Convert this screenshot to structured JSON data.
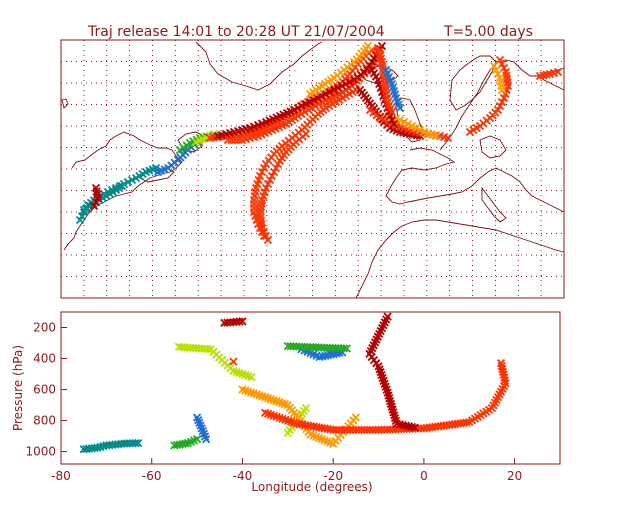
{
  "title": "Traj release 14:01 to 20:28 UT 21/07/2004",
  "duration": "T=5.00 days",
  "map": {
    "lon_range": [
      -80,
      30
    ],
    "lat_range": [
      20,
      80
    ],
    "grid_step": 5
  },
  "chart_data": {
    "type": "scatter",
    "title": "Traj release 14:01 to 20:28 UT 21/07/2004    T=5.00 days",
    "xlabel": "Longitude  (degrees)",
    "ylabel": "Pressure  (hPa)",
    "xlim": [
      -80,
      30
    ],
    "ylim": [
      1080,
      100
    ],
    "x_ticks": [
      -80,
      -60,
      -40,
      -20,
      0,
      20
    ],
    "y_ticks": [
      200,
      400,
      600,
      800,
      1000
    ],
    "series": [
      {
        "color": "#008b8b",
        "values": [
          [
            -75,
            985
          ],
          [
            -72,
            975
          ],
          [
            -70,
            960
          ],
          [
            -68,
            955
          ],
          [
            -66,
            948
          ],
          [
            -63,
            945
          ]
        ]
      },
      {
        "color": "#1f6fd1",
        "values": [
          [
            -50,
            780
          ],
          [
            -49,
            850
          ],
          [
            -48,
            920
          ],
          [
            -27,
            340
          ],
          [
            -23,
            390
          ],
          [
            -18,
            360
          ]
        ]
      },
      {
        "color": "#22aa22",
        "values": [
          [
            -55,
            960
          ],
          [
            -52,
            945
          ],
          [
            -50,
            920
          ],
          [
            -30,
            320
          ],
          [
            -22,
            330
          ],
          [
            -17,
            335
          ]
        ]
      },
      {
        "color": "#b8e000",
        "values": [
          [
            -54,
            325
          ],
          [
            -47,
            340
          ],
          [
            -42,
            480
          ],
          [
            -38,
            520
          ],
          [
            -30,
            880
          ],
          [
            -26,
            720
          ]
        ]
      },
      {
        "color": "#ff9900",
        "values": [
          [
            -40,
            600
          ],
          [
            -35,
            650
          ],
          [
            -30,
            700
          ],
          [
            -25,
            890
          ],
          [
            -20,
            950
          ],
          [
            -15,
            780
          ]
        ]
      },
      {
        "color": "#ff3300",
        "values": [
          [
            -42,
            420
          ],
          [
            -35,
            750
          ],
          [
            -28,
            820
          ],
          [
            -20,
            860
          ],
          [
            -10,
            860
          ],
          [
            0,
            850
          ],
          [
            10,
            810
          ],
          [
            15,
            720
          ],
          [
            18,
            560
          ],
          [
            17,
            430
          ]
        ]
      },
      {
        "color": "#b20000",
        "values": [
          [
            -44,
            170
          ],
          [
            -40,
            160
          ],
          [
            -8,
            130
          ],
          [
            -12,
            370
          ],
          [
            -10,
            450
          ],
          [
            -8,
            620
          ],
          [
            -6,
            820
          ],
          [
            -2,
            845
          ]
        ]
      }
    ]
  }
}
